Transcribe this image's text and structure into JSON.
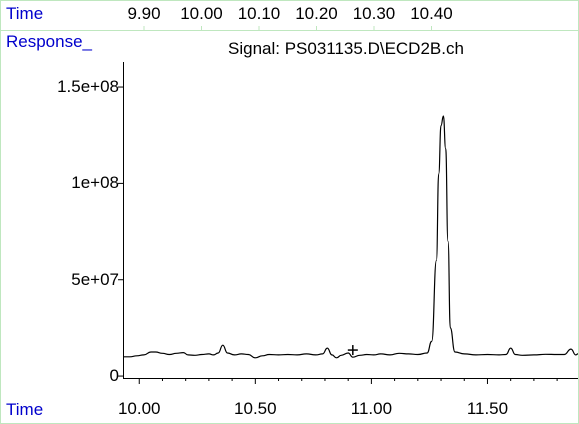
{
  "header": {
    "time_label": "Time",
    "response_label": "Response_",
    "signal_title": "Signal: PS031135.D\\ECD2B.ch",
    "top_ticks": [
      "9.90",
      "10.00",
      "10.10",
      "10.20",
      "10.30",
      "10.40"
    ]
  },
  "footer": {
    "time_label": "Time"
  },
  "colors": {
    "label_blue": "#0000cc",
    "trace": "#000000",
    "frame_green": "#bfe7bf"
  },
  "chart_data": {
    "type": "line",
    "title": "Signal: PS031135.D\\ECD2B.ch",
    "xlabel": "Time",
    "ylabel": "Response_",
    "xlim": [
      9.93,
      11.89
    ],
    "ylim": [
      -1000000,
      163000000
    ],
    "x_ticks": [
      10.0,
      10.5,
      11.0,
      11.5
    ],
    "x_tick_labels": [
      "10.00",
      "10.50",
      "11.00",
      "11.50"
    ],
    "y_ticks": [
      0,
      50000000,
      100000000,
      150000000
    ],
    "y_tick_labels": [
      "0",
      "5e+07",
      "1e+08",
      "1.5e+08"
    ],
    "top_axis_ticks": [
      9.9,
      10.0,
      10.1,
      10.2,
      10.3,
      10.4
    ],
    "grid": false,
    "legend": "none",
    "marker": {
      "symbol": "+",
      "x": 10.92,
      "y": 13500000
    },
    "series": [
      {
        "x": [
          9.93,
          9.96,
          9.99,
          10.02,
          10.05,
          10.07,
          10.1,
          10.13,
          10.16,
          10.19,
          10.21,
          10.24,
          10.27,
          10.3,
          10.32,
          10.34,
          10.36,
          10.38,
          10.41,
          10.44,
          10.47,
          10.5,
          10.53,
          10.56,
          10.6,
          10.64,
          10.68,
          10.72,
          10.76,
          10.79,
          10.81,
          10.83,
          10.85,
          10.87,
          10.9,
          10.92,
          10.95,
          10.98,
          11.01,
          11.04,
          11.08,
          11.12,
          11.16,
          11.2,
          11.24,
          11.26,
          11.28,
          11.29,
          11.3,
          11.31,
          11.32,
          11.33,
          11.34,
          11.36,
          11.4,
          11.45,
          11.5,
          11.55,
          11.58,
          11.6,
          11.62,
          11.65,
          11.7,
          11.75,
          11.8,
          11.83,
          11.86,
          11.88,
          11.89
        ],
        "y": [
          10000000,
          10000000,
          10500000,
          11000000,
          12500000,
          12500000,
          11800000,
          11200000,
          11800000,
          12200000,
          11000000,
          10800000,
          11200000,
          11500000,
          11000000,
          12000000,
          16000000,
          12000000,
          11000000,
          11500000,
          11200000,
          9500000,
          10500000,
          11200000,
          11000000,
          11200000,
          11000000,
          11500000,
          11000000,
          11500000,
          14500000,
          11000000,
          9500000,
          10800000,
          12000000,
          9800000,
          10800000,
          11200000,
          11000000,
          11500000,
          11000000,
          11800000,
          11500000,
          11200000,
          12000000,
          18000000,
          60000000,
          105000000,
          130000000,
          135000000,
          118000000,
          70000000,
          25000000,
          12500000,
          11500000,
          11000000,
          11200000,
          11000000,
          11200000,
          14500000,
          11200000,
          10800000,
          11000000,
          11300000,
          11200000,
          11200000,
          14000000,
          11000000,
          11500000
        ]
      }
    ]
  }
}
